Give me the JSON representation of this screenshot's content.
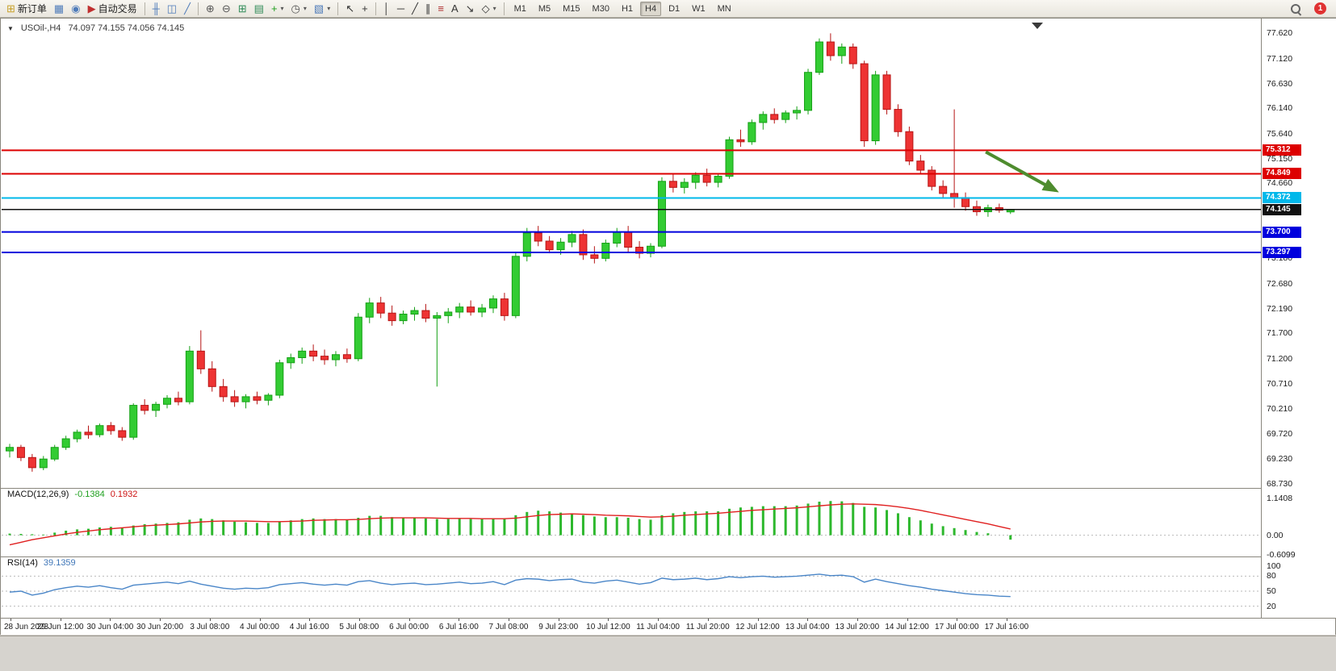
{
  "colors": {
    "bull": "#33cc33",
    "bull_dark": "#15a015",
    "bear": "#ee3333",
    "bear_dark": "#b61515",
    "macd_hist": "#2db82d",
    "macd_signal": "#e02020",
    "rsi_line": "#4a86c8",
    "accent_red": "#dd0000",
    "accent_blue": "#0000dd",
    "accent_cyan": "#00b8ea",
    "arrow_green": "#4e8c2e"
  },
  "toolbar": {
    "active_timeframe": "H4",
    "notification_count": "1",
    "items": [
      {
        "type": "labelbtn",
        "name": "new-order-button",
        "icon": "new-order-icon",
        "glyph": "⊞",
        "glyph_color": "#c8a028",
        "label": "新订单"
      },
      {
        "type": "iconbtn",
        "name": "charts-window-button",
        "icon": "chart-window-icon",
        "glyph": "▦",
        "glyph_color": "#4f7cba"
      },
      {
        "type": "iconbtn",
        "name": "profiles-button",
        "icon": "profiles-icon",
        "glyph": "◉",
        "glyph_color": "#4f7cba"
      },
      {
        "type": "labelbtn",
        "name": "autotrading-button",
        "icon": "autotrading-icon",
        "glyph": "▶",
        "glyph_color": "#c03030",
        "label": "自动交易"
      },
      {
        "type": "sep"
      },
      {
        "type": "iconbtn",
        "name": "bar-chart-button",
        "icon": "bar-chart-icon",
        "glyph": "╫",
        "glyph_color": "#4f7cba"
      },
      {
        "type": "iconbtn",
        "name": "candlestick-chart-button",
        "icon": "candlestick-chart-icon",
        "glyph": "◫",
        "glyph_color": "#4f7cba"
      },
      {
        "type": "iconbtn",
        "name": "line-chart-button",
        "icon": "line-chart-icon",
        "glyph": "╱",
        "glyph_color": "#4f7cba"
      },
      {
        "type": "sep"
      },
      {
        "type": "iconbtn",
        "name": "zoom-in-button",
        "icon": "zoom-in-icon",
        "glyph": "⊕",
        "glyph_color": "#555555"
      },
      {
        "type": "iconbtn",
        "name": "zoom-out-button",
        "icon": "zoom-out-icon",
        "glyph": "⊖",
        "glyph_color": "#555555"
      },
      {
        "type": "iconbtn",
        "name": "tile-windows-button",
        "icon": "tile-windows-icon",
        "glyph": "⊞",
        "glyph_color": "#2e8b57"
      },
      {
        "type": "iconbtn",
        "name": "arrange-windows-button",
        "icon": "arrange-windows-icon",
        "glyph": "▤",
        "glyph_color": "#2e8b57"
      },
      {
        "type": "dropbtn",
        "name": "add-indicator-button",
        "icon": "add-indicator-icon",
        "glyph": "+",
        "glyph_color": "#1e9e1e"
      },
      {
        "type": "dropbtn",
        "name": "periods-button",
        "icon": "clock-icon",
        "glyph": "◷",
        "glyph_color": "#555555"
      },
      {
        "type": "dropbtn",
        "name": "chart-properties-button",
        "icon": "chart-properties-icon",
        "glyph": "▧",
        "glyph_color": "#4f7cba"
      },
      {
        "type": "sep"
      },
      {
        "type": "iconbtn",
        "name": "cursor-button",
        "icon": "cursor-icon",
        "glyph": "↖",
        "glyph_color": "#333333"
      },
      {
        "type": "iconbtn",
        "name": "crosshair-button",
        "icon": "crosshair-icon",
        "glyph": "+",
        "glyph_color": "#333333"
      },
      {
        "type": "sep"
      },
      {
        "type": "iconbtn",
        "name": "vertical-line-button",
        "icon": "vertical-line-icon",
        "glyph": "│",
        "glyph_color": "#333333"
      },
      {
        "type": "iconbtn",
        "name": "horizontal-line-button",
        "icon": "horizontal-line-icon",
        "glyph": "─",
        "glyph_color": "#333333"
      },
      {
        "type": "iconbtn",
        "name": "trendline-button",
        "icon": "trendline-icon",
        "glyph": "╱",
        "glyph_color": "#333333"
      },
      {
        "type": "iconbtn",
        "name": "channel-button",
        "icon": "channel-icon",
        "glyph": "∥",
        "glyph_color": "#333333"
      },
      {
        "type": "iconbtn",
        "name": "fibonacci-button",
        "icon": "fibonacci-icon",
        "glyph": "≡",
        "glyph_color": "#b03030"
      },
      {
        "type": "iconbtn",
        "name": "text-tool-button",
        "icon": "text-icon",
        "glyph": "A",
        "glyph_color": "#333333"
      },
      {
        "type": "iconbtn",
        "name": "arrows-tool-button",
        "icon": "arrows-tool-icon",
        "glyph": "↘",
        "glyph_color": "#333333"
      },
      {
        "type": "dropbtn",
        "name": "shapes-tool-button",
        "icon": "shapes-icon",
        "glyph": "◇",
        "glyph_color": "#333333"
      },
      {
        "type": "sep"
      },
      {
        "type": "tf",
        "label": "M1"
      },
      {
        "type": "tf",
        "label": "M5"
      },
      {
        "type": "tf",
        "label": "M15"
      },
      {
        "type": "tf",
        "label": "M30"
      },
      {
        "type": "tf",
        "label": "H1"
      },
      {
        "type": "tf",
        "label": "H4"
      },
      {
        "type": "tf",
        "label": "D1"
      },
      {
        "type": "tf",
        "label": "W1"
      },
      {
        "type": "tf",
        "label": "MN"
      },
      {
        "type": "spacer"
      },
      {
        "type": "search",
        "name": "search-icon"
      },
      {
        "type": "badge",
        "name": "notification-badge",
        "label": "1"
      }
    ]
  },
  "chart": {
    "collapse_glyph": "▼",
    "title_symbol": "USOil-,H4",
    "ohlc": "74.097 74.155 74.056 74.145"
  },
  "indicators": {
    "macd": {
      "label": "MACD(12,26,9)",
      "value_main": "-0.1384",
      "value_signal": "0.1932"
    },
    "rsi": {
      "label": "RSI(14)",
      "value": "39.1359"
    }
  },
  "chart_data": {
    "type": "candlestick",
    "symbol": "USOil-",
    "timeframe": "H4",
    "ylim": [
      68.65,
      77.88
    ],
    "price_ticks": [
      "77.620",
      "77.120",
      "76.630",
      "76.140",
      "75.640",
      "75.150",
      "74.660",
      "74.170",
      "73.680",
      "73.180",
      "72.680",
      "72.190",
      "71.700",
      "71.200",
      "70.710",
      "70.210",
      "69.720",
      "69.230",
      "68.730"
    ],
    "time_labels": [
      "28 Jun 2023",
      "29 Jun 12:00",
      "30 Jun 04:00",
      "30 Jun 20:00",
      "3 Jul 08:00",
      "4 Jul 00:00",
      "4 Jul 16:00",
      "5 Jul 08:00",
      "6 Jul 00:00",
      "6 Jul 16:00",
      "7 Jul 08:00",
      "9 Jul 23:00",
      "10 Jul 12:00",
      "11 Jul 04:00",
      "11 Jul 20:00",
      "12 Jul 12:00",
      "13 Jul 04:00",
      "13 Jul 20:00",
      "14 Jul 12:00",
      "17 Jul 00:00",
      "17 Jul 16:00"
    ],
    "candles": [
      [
        69.38,
        69.52,
        69.25,
        69.45
      ],
      [
        69.45,
        69.5,
        69.18,
        69.25
      ],
      [
        69.25,
        69.32,
        68.97,
        69.05
      ],
      [
        69.05,
        69.28,
        69.0,
        69.22
      ],
      [
        69.22,
        69.5,
        69.18,
        69.45
      ],
      [
        69.45,
        69.68,
        69.4,
        69.62
      ],
      [
        69.62,
        69.8,
        69.55,
        69.75
      ],
      [
        69.75,
        69.88,
        69.62,
        69.7
      ],
      [
        69.7,
        69.92,
        69.65,
        69.88
      ],
      [
        69.88,
        69.95,
        69.7,
        69.78
      ],
      [
        69.78,
        69.85,
        69.58,
        69.65
      ],
      [
        69.65,
        70.32,
        69.6,
        70.28
      ],
      [
        70.28,
        70.4,
        70.1,
        70.18
      ],
      [
        70.18,
        70.35,
        70.05,
        70.3
      ],
      [
        70.3,
        70.48,
        70.22,
        70.42
      ],
      [
        70.42,
        70.55,
        70.28,
        70.35
      ],
      [
        70.35,
        71.45,
        70.3,
        71.35
      ],
      [
        71.35,
        71.76,
        70.9,
        71.0
      ],
      [
        71.0,
        71.15,
        70.55,
        70.65
      ],
      [
        70.65,
        70.8,
        70.35,
        70.45
      ],
      [
        70.45,
        70.58,
        70.25,
        70.35
      ],
      [
        70.35,
        70.5,
        70.22,
        70.45
      ],
      [
        70.45,
        70.55,
        70.3,
        70.38
      ],
      [
        70.38,
        70.52,
        70.28,
        70.48
      ],
      [
        70.48,
        71.18,
        70.42,
        71.12
      ],
      [
        71.12,
        71.3,
        71.0,
        71.22
      ],
      [
        71.22,
        71.42,
        71.1,
        71.35
      ],
      [
        71.35,
        71.48,
        71.15,
        71.25
      ],
      [
        71.25,
        71.38,
        71.08,
        71.18
      ],
      [
        71.18,
        71.35,
        71.05,
        71.28
      ],
      [
        71.28,
        71.4,
        71.12,
        71.2
      ],
      [
        71.2,
        72.1,
        71.15,
        72.02
      ],
      [
        72.02,
        72.4,
        71.9,
        72.3
      ],
      [
        72.3,
        72.42,
        72.0,
        72.1
      ],
      [
        72.1,
        72.25,
        71.85,
        71.95
      ],
      [
        71.95,
        72.15,
        71.88,
        72.08
      ],
      [
        72.08,
        72.22,
        71.95,
        72.15
      ],
      [
        72.15,
        72.28,
        71.92,
        72.0
      ],
      [
        72.0,
        72.12,
        70.65,
        72.05
      ],
      [
        72.05,
        72.2,
        71.9,
        72.12
      ],
      [
        72.12,
        72.3,
        72.0,
        72.22
      ],
      [
        72.22,
        72.35,
        72.05,
        72.12
      ],
      [
        72.12,
        72.28,
        72.02,
        72.2
      ],
      [
        72.2,
        72.45,
        72.1,
        72.38
      ],
      [
        72.38,
        72.5,
        71.95,
        72.05
      ],
      [
        72.05,
        73.3,
        72.0,
        73.22
      ],
      [
        73.22,
        73.78,
        73.12,
        73.68
      ],
      [
        73.68,
        73.82,
        73.42,
        73.52
      ],
      [
        73.52,
        73.62,
        73.28,
        73.35
      ],
      [
        73.35,
        73.58,
        73.25,
        73.5
      ],
      [
        73.5,
        73.72,
        73.4,
        73.65
      ],
      [
        73.65,
        73.75,
        73.15,
        73.25
      ],
      [
        73.25,
        73.42,
        73.08,
        73.18
      ],
      [
        73.18,
        73.55,
        73.12,
        73.48
      ],
      [
        73.48,
        73.78,
        73.4,
        73.7
      ],
      [
        73.7,
        73.82,
        73.3,
        73.4
      ],
      [
        73.4,
        73.52,
        73.18,
        73.28
      ],
      [
        73.28,
        73.48,
        73.2,
        73.42
      ],
      [
        73.42,
        74.78,
        73.38,
        74.7
      ],
      [
        74.7,
        74.85,
        74.48,
        74.58
      ],
      [
        74.58,
        74.76,
        74.46,
        74.68
      ],
      [
        74.68,
        74.88,
        74.55,
        74.82
      ],
      [
        74.82,
        74.95,
        74.6,
        74.68
      ],
      [
        74.68,
        74.86,
        74.58,
        74.8
      ],
      [
        74.8,
        75.58,
        74.75,
        75.52
      ],
      [
        75.52,
        75.72,
        75.38,
        75.48
      ],
      [
        75.48,
        75.92,
        75.42,
        75.86
      ],
      [
        75.86,
        76.08,
        75.72,
        76.02
      ],
      [
        76.02,
        76.14,
        75.84,
        75.92
      ],
      [
        75.92,
        76.1,
        75.85,
        76.05
      ],
      [
        76.05,
        76.18,
        75.92,
        76.1
      ],
      [
        76.1,
        76.92,
        76.02,
        76.85
      ],
      [
        76.85,
        77.52,
        76.8,
        77.45
      ],
      [
        77.45,
        77.62,
        77.08,
        77.18
      ],
      [
        77.18,
        77.42,
        77.02,
        77.35
      ],
      [
        77.35,
        77.42,
        76.92,
        77.02
      ],
      [
        77.02,
        77.08,
        75.38,
        75.5
      ],
      [
        75.5,
        76.88,
        75.42,
        76.8
      ],
      [
        76.8,
        76.88,
        76.02,
        76.12
      ],
      [
        76.12,
        76.22,
        75.58,
        75.68
      ],
      [
        75.68,
        75.78,
        75.02,
        75.1
      ],
      [
        75.1,
        75.22,
        74.85,
        74.92
      ],
      [
        74.92,
        75.0,
        74.52,
        74.6
      ],
      [
        74.6,
        74.72,
        74.38,
        74.46
      ],
      [
        74.46,
        76.12,
        74.18,
        74.38
      ],
      [
        74.38,
        74.48,
        74.12,
        74.2
      ],
      [
        74.2,
        74.32,
        74.02,
        74.1
      ],
      [
        74.1,
        74.24,
        74.0,
        74.18
      ],
      [
        74.18,
        74.26,
        74.08,
        74.13
      ],
      [
        74.097,
        74.155,
        74.056,
        74.145
      ]
    ],
    "hlines": [
      {
        "name": "resistance-line-upper",
        "price": 75.312,
        "color": "#dd0000",
        "width": 2,
        "label": "75.312"
      },
      {
        "name": "resistance-line-lower",
        "price": 74.849,
        "color": "#dd0000",
        "width": 2,
        "label": "74.849"
      },
      {
        "name": "pivot-line-cyan",
        "price": 74.372,
        "color": "#00b8ea",
        "width": 2,
        "label": "74.372"
      },
      {
        "name": "current-price-line",
        "price": 74.145,
        "color": "#111111",
        "width": 1.5,
        "label": "74.145"
      },
      {
        "name": "support-line-upper",
        "price": 73.7,
        "color": "#0000dd",
        "width": 2,
        "label": "73.700"
      },
      {
        "name": "support-line-lower",
        "price": 73.297,
        "color": "#0000dd",
        "width": 2,
        "label": "73.297"
      }
    ],
    "arrow": {
      "from_index": 86.8,
      "from_price": 75.28,
      "to_index": 93.0,
      "to_price": 74.52,
      "color": "#4e8c2e"
    },
    "macd": {
      "ylim": [
        -0.6099,
        1.1408
      ],
      "scale": [
        "1.1408",
        "0.00",
        "-0.6099"
      ],
      "histogram": [
        0.05,
        0.04,
        0.03,
        0.02,
        0.08,
        0.14,
        0.18,
        0.2,
        0.24,
        0.26,
        0.24,
        0.3,
        0.34,
        0.36,
        0.38,
        0.4,
        0.48,
        0.52,
        0.5,
        0.46,
        0.42,
        0.4,
        0.38,
        0.38,
        0.42,
        0.46,
        0.5,
        0.52,
        0.5,
        0.5,
        0.48,
        0.54,
        0.6,
        0.6,
        0.56,
        0.54,
        0.54,
        0.52,
        0.5,
        0.5,
        0.52,
        0.5,
        0.5,
        0.52,
        0.5,
        0.62,
        0.72,
        0.76,
        0.74,
        0.7,
        0.68,
        0.62,
        0.58,
        0.56,
        0.56,
        0.54,
        0.5,
        0.48,
        0.62,
        0.68,
        0.72,
        0.74,
        0.74,
        0.74,
        0.82,
        0.86,
        0.88,
        0.9,
        0.9,
        0.9,
        0.92,
        0.98,
        1.04,
        1.06,
        1.05,
        1.0,
        0.88,
        0.86,
        0.78,
        0.68,
        0.56,
        0.46,
        0.36,
        0.28,
        0.22,
        0.16,
        0.1,
        0.06,
        0.0,
        -0.138
      ],
      "signal": [
        -0.3,
        -0.22,
        -0.14,
        -0.08,
        -0.02,
        0.04,
        0.09,
        0.13,
        0.17,
        0.2,
        0.23,
        0.26,
        0.29,
        0.31,
        0.33,
        0.35,
        0.38,
        0.41,
        0.43,
        0.44,
        0.44,
        0.44,
        0.43,
        0.42,
        0.42,
        0.43,
        0.44,
        0.46,
        0.47,
        0.48,
        0.48,
        0.49,
        0.51,
        0.53,
        0.54,
        0.54,
        0.54,
        0.54,
        0.53,
        0.52,
        0.52,
        0.52,
        0.51,
        0.51,
        0.51,
        0.53,
        0.57,
        0.61,
        0.64,
        0.65,
        0.66,
        0.65,
        0.64,
        0.62,
        0.61,
        0.6,
        0.58,
        0.56,
        0.57,
        0.59,
        0.62,
        0.64,
        0.66,
        0.68,
        0.71,
        0.74,
        0.77,
        0.79,
        0.81,
        0.83,
        0.85,
        0.88,
        0.91,
        0.94,
        0.96,
        0.97,
        0.96,
        0.95,
        0.92,
        0.88,
        0.83,
        0.77,
        0.7,
        0.63,
        0.56,
        0.49,
        0.42,
        0.35,
        0.27,
        0.193
      ]
    },
    "rsi": {
      "ylim": [
        0,
        100
      ],
      "levels": [
        80,
        50,
        20
      ],
      "scale": [
        "100",
        "80",
        "50",
        "20"
      ],
      "values": [
        48,
        50,
        42,
        46,
        53,
        57,
        60,
        58,
        61,
        57,
        54,
        62,
        64,
        66,
        68,
        65,
        70,
        64,
        60,
        56,
        54,
        56,
        55,
        57,
        63,
        65,
        67,
        64,
        62,
        64,
        62,
        69,
        71,
        66,
        63,
        65,
        66,
        63,
        64,
        66,
        68,
        65,
        66,
        69,
        63,
        72,
        75,
        74,
        71,
        73,
        74,
        68,
        66,
        70,
        72,
        68,
        64,
        67,
        76,
        73,
        74,
        76,
        73,
        75,
        79,
        77,
        79,
        80,
        78,
        79,
        80,
        82,
        84,
        81,
        82,
        79,
        68,
        74,
        69,
        65,
        61,
        58,
        54,
        51,
        48,
        45,
        43,
        42,
        40,
        39.14
      ]
    }
  }
}
